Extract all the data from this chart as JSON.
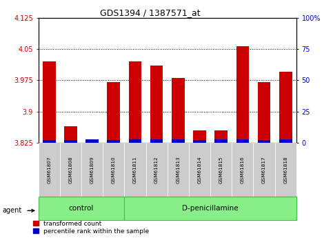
{
  "title": "GDS1394 / 1387571_at",
  "samples": [
    "GSM61807",
    "GSM61808",
    "GSM61809",
    "GSM61810",
    "GSM61811",
    "GSM61812",
    "GSM61813",
    "GSM61814",
    "GSM61815",
    "GSM61816",
    "GSM61817",
    "GSM61818"
  ],
  "red_values": [
    4.02,
    3.865,
    3.825,
    3.97,
    4.02,
    4.01,
    3.98,
    3.855,
    3.855,
    4.057,
    3.97,
    3.995
  ],
  "blue_values": [
    2.0,
    2.0,
    3.0,
    2.0,
    2.5,
    3.0,
    3.0,
    2.0,
    3.0,
    3.0,
    2.0,
    3.0
  ],
  "y_min": 3.825,
  "y_max": 4.125,
  "y_ticks": [
    3.825,
    3.9,
    3.975,
    4.05,
    4.125
  ],
  "right_y_ticks_pct": [
    0,
    25,
    50,
    75,
    100
  ],
  "right_y_labels": [
    "0",
    "25",
    "50",
    "75",
    "100%"
  ],
  "groups": [
    {
      "label": "control",
      "start": 0,
      "end": 4
    },
    {
      "label": "D-penicillamine",
      "start": 4,
      "end": 12
    }
  ],
  "red_color": "#cc0000",
  "blue_color": "#0000cc",
  "bar_width": 0.6,
  "group_bg": "#88ee88",
  "sample_bg": "#cccccc",
  "legend_red": "transformed count",
  "legend_blue": "percentile rank within the sample"
}
